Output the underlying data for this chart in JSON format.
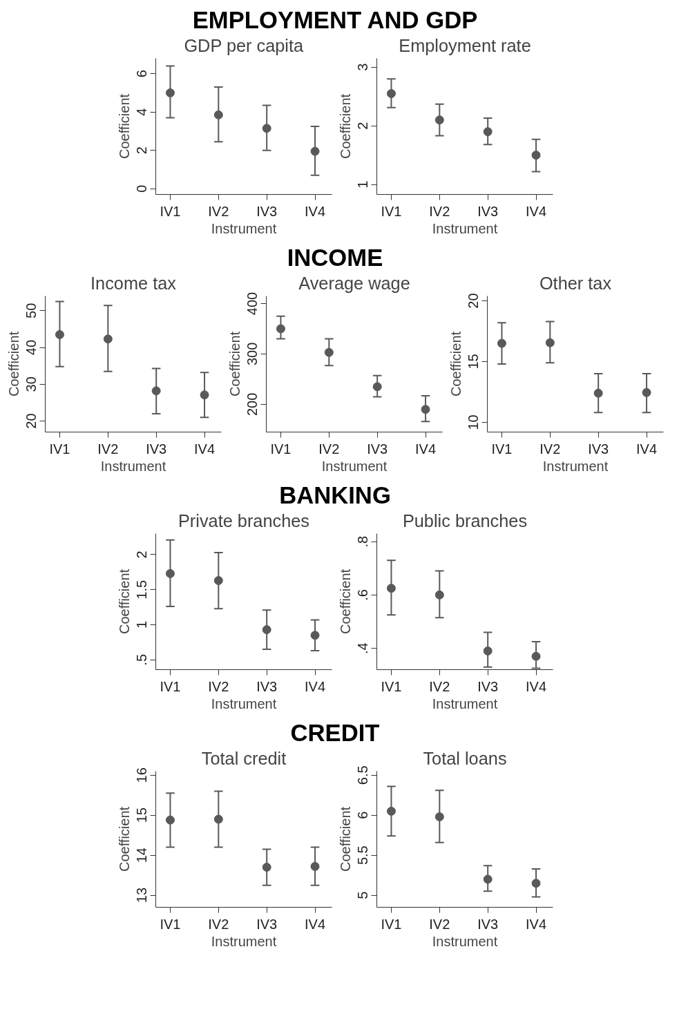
{
  "chart_data": [
    {
      "type": "scatter",
      "title": "GDP per capita",
      "annotations": [
        "EMPLOYMENT AND GDP"
      ],
      "xlabel": "Instrument",
      "ylabel": "Coefficient",
      "categories": [
        "IV1",
        "IV2",
        "IV3",
        "IV4"
      ],
      "series": [
        {
          "color": "#595959",
          "values": [
            5.0,
            3.85,
            3.15,
            1.95
          ],
          "errors": [
            [
              3.7,
              6.4
            ],
            [
              2.45,
              5.3
            ],
            [
              2.0,
              4.35
            ],
            [
              0.7,
              3.25
            ]
          ]
        }
      ],
      "ylim": [
        -0.3,
        6.8
      ],
      "yticks": [
        0,
        2,
        4,
        6
      ],
      "marker": "circle"
    },
    {
      "type": "scatter",
      "title": "Employment rate",
      "xlabel": "Instrument",
      "ylabel": "Coefficient",
      "categories": [
        "IV1",
        "IV2",
        "IV3",
        "IV4"
      ],
      "series": [
        {
          "color": "#595959",
          "values": [
            2.55,
            2.1,
            1.9,
            1.5
          ],
          "errors": [
            [
              2.31,
              2.8
            ],
            [
              1.83,
              2.37
            ],
            [
              1.68,
              2.13
            ],
            [
              1.22,
              1.77
            ]
          ]
        }
      ],
      "ylim": [
        0.83,
        3.15
      ],
      "yticks": [
        1,
        2,
        3
      ],
      "marker": "circle"
    },
    {
      "type": "scatter",
      "title": "Income tax",
      "annotations": [
        "INCOME"
      ],
      "xlabel": "Instrument",
      "ylabel": "Coefficient",
      "categories": [
        "IV1",
        "IV2",
        "IV3",
        "IV4"
      ],
      "series": [
        {
          "color": "#595959",
          "values": [
            43.5,
            42.3,
            28.2,
            27.1
          ],
          "errors": [
            [
              34.8,
              52.5
            ],
            [
              33.5,
              51.4
            ],
            [
              22.0,
              34.3
            ],
            [
              21.0,
              33.2
            ]
          ]
        }
      ],
      "ylim": [
        17,
        54
      ],
      "yticks": [
        20,
        30,
        40,
        50
      ],
      "marker": "circle"
    },
    {
      "type": "scatter",
      "title": "Average wage",
      "xlabel": "Instrument",
      "ylabel": "Coefficient",
      "categories": [
        "IV1",
        "IV2",
        "IV3",
        "IV4"
      ],
      "series": [
        {
          "color": "#595959",
          "values": [
            350,
            303,
            235,
            190
          ],
          "errors": [
            [
              330,
              375
            ],
            [
              277,
              330
            ],
            [
              215,
              257
            ],
            [
              166,
              217
            ]
          ]
        }
      ],
      "ylim": [
        145,
        415
      ],
      "yticks": [
        200,
        300,
        400
      ],
      "marker": "circle"
    },
    {
      "type": "scatter",
      "title": "Other tax",
      "xlabel": "Instrument",
      "ylabel": "Coefficient",
      "categories": [
        "IV1",
        "IV2",
        "IV3",
        "IV4"
      ],
      "series": [
        {
          "color": "#595959",
          "values": [
            16.5,
            16.55,
            12.4,
            12.45
          ],
          "errors": [
            [
              14.8,
              18.2
            ],
            [
              14.9,
              18.3
            ],
            [
              10.8,
              14.0
            ],
            [
              10.8,
              14.0
            ]
          ]
        }
      ],
      "ylim": [
        9.2,
        20.4
      ],
      "yticks": [
        10,
        15,
        20
      ],
      "marker": "circle"
    },
    {
      "type": "scatter",
      "title": "Private branches",
      "annotations": [
        "BANKING"
      ],
      "xlabel": "Instrument",
      "ylabel": "Coefficient",
      "categories": [
        "IV1",
        "IV2",
        "IV3",
        "IV4"
      ],
      "series": [
        {
          "color": "#595959",
          "values": [
            1.73,
            1.63,
            0.93,
            0.85
          ],
          "errors": [
            [
              1.26,
              2.21
            ],
            [
              1.23,
              2.03
            ],
            [
              0.65,
              1.21
            ],
            [
              0.63,
              1.07
            ]
          ]
        }
      ],
      "ylim": [
        0.36,
        2.3
      ],
      "yticks": [
        {
          "value": 0.5,
          "label": ".5"
        },
        1,
        1.5,
        2
      ],
      "marker": "circle"
    },
    {
      "type": "scatter",
      "title": "Public branches",
      "xlabel": "Instrument",
      "ylabel": "Coefficient",
      "categories": [
        "IV1",
        "IV2",
        "IV3",
        "IV4"
      ],
      "series": [
        {
          "color": "#595959",
          "values": [
            0.625,
            0.6,
            0.39,
            0.37
          ],
          "errors": [
            [
              0.525,
              0.73
            ],
            [
              0.515,
              0.69
            ],
            [
              0.33,
              0.46
            ],
            [
              0.325,
              0.425
            ]
          ]
        }
      ],
      "ylim": [
        0.32,
        0.83
      ],
      "yticks": [
        {
          "value": 0.4,
          "label": ".4"
        },
        {
          "value": 0.6,
          "label": ".6"
        },
        {
          "value": 0.8,
          "label": ".8"
        }
      ],
      "marker": "circle"
    },
    {
      "type": "scatter",
      "title": "Total credit",
      "annotations": [
        "CREDIT"
      ],
      "xlabel": "Instrument",
      "ylabel": "Coefficient",
      "categories": [
        "IV1",
        "IV2",
        "IV3",
        "IV4"
      ],
      "series": [
        {
          "color": "#595959",
          "values": [
            14.88,
            14.9,
            13.7,
            13.72
          ],
          "errors": [
            [
              14.2,
              15.55
            ],
            [
              14.2,
              15.6
            ],
            [
              13.25,
              14.15
            ],
            [
              13.25,
              14.2
            ]
          ]
        }
      ],
      "ylim": [
        12.7,
        16.1
      ],
      "yticks": [
        13,
        14,
        15,
        16
      ],
      "marker": "circle"
    },
    {
      "type": "scatter",
      "title": "Total loans",
      "xlabel": "Instrument",
      "ylabel": "Coefficient",
      "categories": [
        "IV1",
        "IV2",
        "IV3",
        "IV4"
      ],
      "series": [
        {
          "color": "#595959",
          "values": [
            6.05,
            5.98,
            5.2,
            5.15
          ],
          "errors": [
            [
              5.74,
              6.36
            ],
            [
              5.66,
              6.31
            ],
            [
              5.05,
              5.37
            ],
            [
              4.98,
              5.33
            ]
          ]
        }
      ],
      "ylim": [
        4.85,
        6.55
      ],
      "yticks": [
        5,
        5.5,
        6,
        6.5
      ],
      "marker": "circle"
    }
  ]
}
